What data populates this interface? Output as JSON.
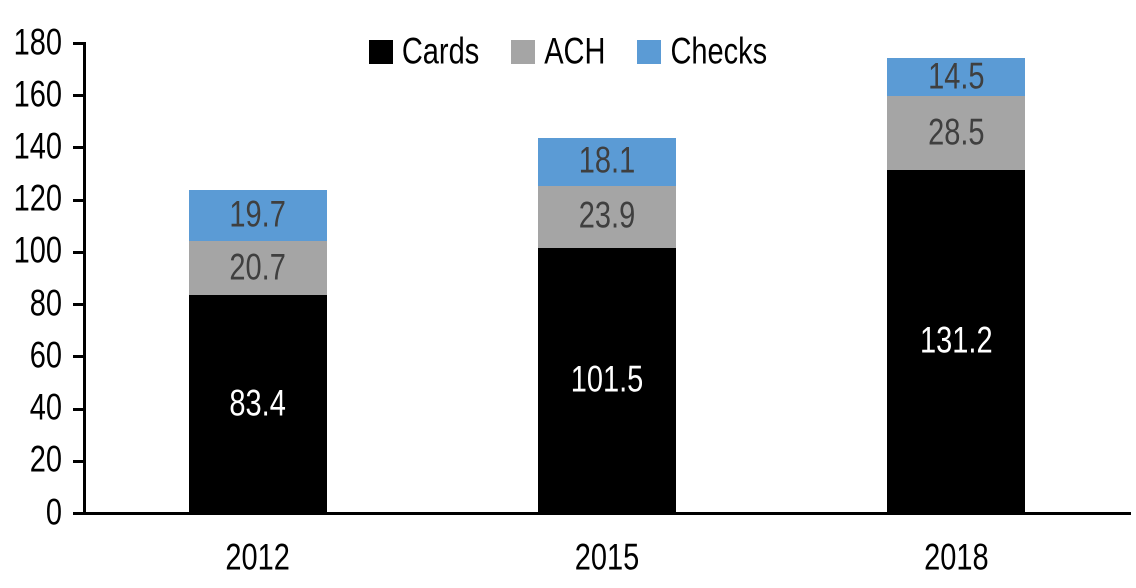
{
  "chart_data": {
    "type": "bar",
    "stacked": true,
    "title": "",
    "categories": [
      "2012",
      "2015",
      "2018"
    ],
    "series": [
      {
        "name": "Cards",
        "color": "#000000",
        "label_color": "#ffffff",
        "values": [
          83.4,
          101.5,
          131.2
        ]
      },
      {
        "name": "ACH",
        "color": "#a5a5a5",
        "label_color": "#3f3f3f",
        "values": [
          20.7,
          23.9,
          28.5
        ]
      },
      {
        "name": "Checks",
        "color": "#5b9bd5",
        "label_color": "#3f3f3f",
        "values": [
          19.7,
          18.1,
          14.5
        ]
      }
    ],
    "totals": [
      123.8,
      143.5,
      174.2
    ],
    "xlabel": "",
    "ylabel": "",
    "ylim": [
      0,
      180
    ],
    "yticks": [
      0,
      20,
      40,
      60,
      80,
      100,
      120,
      140,
      160,
      180
    ],
    "grid": false,
    "legend_position": "top",
    "legend_labels": [
      "Cards",
      "ACH",
      "Checks"
    ],
    "axis_color": "#000000",
    "tick_label_color": "#000000"
  }
}
